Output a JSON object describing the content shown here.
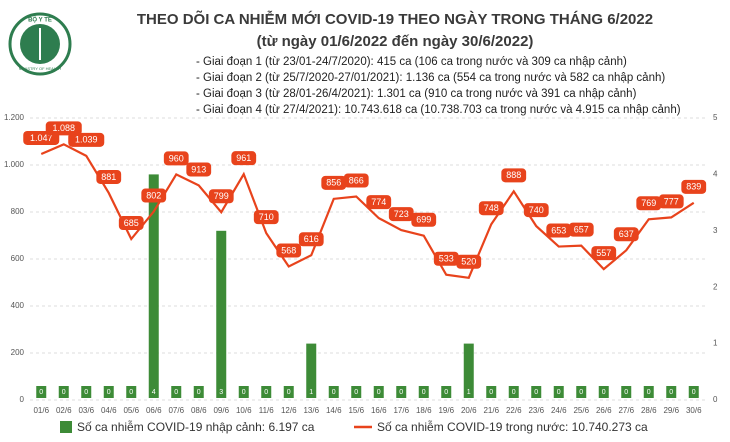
{
  "chart_data": {
    "type": "bar-line",
    "logo_top": "BỘ Y TẾ",
    "logo_bottom": "MINISTRY OF HEALTH",
    "title": "THEO DÕI CA NHIỄM MỚI COVID-19 THEO NGÀY TRONG THÁNG 6/2022",
    "subtitle": "(từ ngày 01/6/2022 đến ngày 30/6/2022)",
    "notes": [
      "- Giai đoạn 1 (từ 23/01-24/7/2020): 415 ca (106 ca trong nước và 309 ca nhập cảnh)",
      "- Giai đoạn 2 (từ 25/7/2020-27/01/2021): 1.136 ca (554 ca trong nước và 582 ca nhập cảnh)",
      "- Giai đoạn 3 (từ 28/01-26/4/2021): 1.301 ca (910 ca trong nước và 391 ca nhập cảnh)",
      "- Giai đoạn 4 (từ 27/4/2021): 10.743.618 ca (10.738.703 ca trong nước và 4.915 ca nhập cảnh)"
    ],
    "categories": [
      "01/6",
      "02/6",
      "03/6",
      "04/6",
      "05/6",
      "06/6",
      "07/6",
      "08/6",
      "09/6",
      "10/6",
      "11/6",
      "12/6",
      "13/6",
      "14/6",
      "15/6",
      "16/6",
      "17/6",
      "18/6",
      "19/6",
      "20/6",
      "21/6",
      "22/6",
      "23/6",
      "24/6",
      "25/6",
      "26/6",
      "27/6",
      "28/6",
      "29/6",
      "30/6"
    ],
    "ylim": [
      0,
      1200
    ],
    "yticks": [
      0,
      200,
      400,
      600,
      800,
      {
        "value": 1000,
        "label": "1.000"
      },
      {
        "value": 1200,
        "label": "1.200"
      }
    ],
    "y2lim": [
      0,
      5
    ],
    "y2ticks": [
      0,
      1,
      2,
      3,
      4,
      5
    ],
    "grid": true,
    "series": [
      {
        "name": "Số ca nhiễm COVID-19 nhập cảnh: 6.197 ca",
        "type": "bar",
        "axis": "y2",
        "color": "#3d8b37",
        "values": [
          0,
          0,
          0,
          0,
          0,
          4,
          0,
          0,
          3,
          0,
          0,
          0,
          1,
          0,
          0,
          0,
          0,
          0,
          0,
          1,
          0,
          0,
          0,
          0,
          0,
          0,
          0,
          0,
          0,
          0
        ]
      },
      {
        "name": "Số ca nhiễm COVID-19 trong nước: 10.740.273 ca",
        "type": "line",
        "color": "#e8431c",
        "values": [
          1047,
          1088,
          1039,
          881,
          685,
          802,
          960,
          913,
          799,
          961,
          710,
          568,
          616,
          856,
          866,
          774,
          723,
          699,
          533,
          520,
          748,
          888,
          740,
          653,
          657,
          557,
          637,
          769,
          777,
          839
        ],
        "value_labels": [
          "1.047",
          "1.088",
          "1.039",
          "881",
          "685",
          "802",
          "960",
          "913",
          "799",
          "961",
          "710",
          "568",
          "616",
          "856",
          "866",
          "774",
          "723",
          "699",
          "533",
          "520",
          "748",
          "888",
          "740",
          "653",
          "657",
          "557",
          "637",
          "769",
          "777",
          "839"
        ]
      }
    ]
  }
}
